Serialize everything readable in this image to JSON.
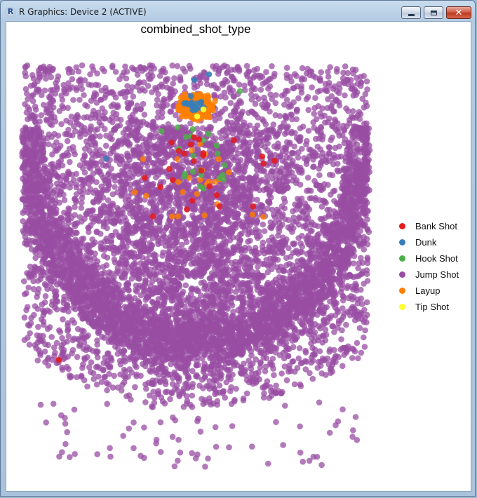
{
  "window": {
    "title": "R Graphics: Device 2 (ACTIVE)",
    "app_icon_letter": "R",
    "close_glyph": "✕"
  },
  "chart_data": {
    "type": "scatter",
    "title": "combined_shot_type",
    "legend_position": "right",
    "grid": false,
    "series": [
      {
        "name": "Bank Shot",
        "color": "#e41a1c"
      },
      {
        "name": "Dunk",
        "color": "#377eb8"
      },
      {
        "name": "Hook Shot",
        "color": "#4daf4a"
      },
      {
        "name": "Jump Shot",
        "color": "#984ea3"
      },
      {
        "name": "Layup",
        "color": "#ff7f00"
      },
      {
        "name": "Tip Shot",
        "color": "#ffff33"
      }
    ]
  }
}
